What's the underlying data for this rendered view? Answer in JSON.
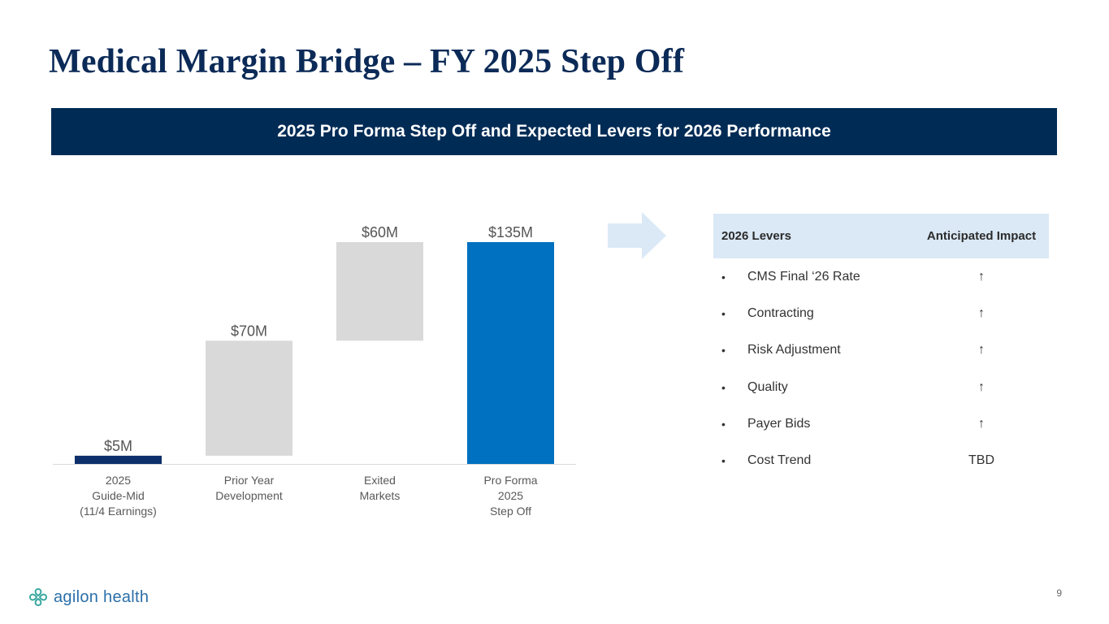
{
  "title": "Medical Margin Bridge – FY 2025 Step Off",
  "banner": "2025 Pro Forma Step Off and Expected Levers for 2026 Performance",
  "chart_data": {
    "type": "waterfall",
    "categories": [
      [
        "2025",
        "Guide-Mid",
        "(11/4 Earnings)"
      ],
      [
        "Prior Year",
        "Development"
      ],
      [
        "Exited",
        "Markets"
      ],
      [
        "Pro Forma",
        "2025",
        "Step Off"
      ]
    ],
    "series": [
      {
        "name": "2025 Guide-Mid",
        "start": 0,
        "end": 5,
        "label": "$5M",
        "color": "#0d2f6b"
      },
      {
        "name": "Prior Year Development",
        "start": 5,
        "end": 75,
        "label": "$70M",
        "color": "#d9d9d9"
      },
      {
        "name": "Exited Markets",
        "start": 75,
        "end": 135,
        "label": "$60M",
        "color": "#d9d9d9"
      },
      {
        "name": "Pro Forma 2025 Step Off",
        "start": 0,
        "end": 135,
        "label": "$135M",
        "color": "#0070c0"
      }
    ],
    "ylim": [
      0,
      135
    ],
    "xlabel": "",
    "ylabel": ""
  },
  "levers": {
    "header": {
      "col1": "2026 Levers",
      "col2": "Anticipated Impact"
    },
    "bullet": "•",
    "rows": [
      {
        "name": "CMS Final ‘26 Rate",
        "impact": "↑"
      },
      {
        "name": "Contracting",
        "impact": "↑"
      },
      {
        "name": "Risk Adjustment",
        "impact": "↑"
      },
      {
        "name": "Quality",
        "impact": "↑"
      },
      {
        "name": "Payer Bids",
        "impact": "↑"
      },
      {
        "name": "Cost Trend",
        "impact": "TBD"
      }
    ]
  },
  "logo": {
    "text": "agilon health",
    "icon": "agilon-logo-icon"
  },
  "page_number": "9",
  "colors": {
    "navy": "#002b55",
    "title": "#0b2a57",
    "accent": "#0070c0",
    "lever_header_bg": "#dbe9f6"
  }
}
